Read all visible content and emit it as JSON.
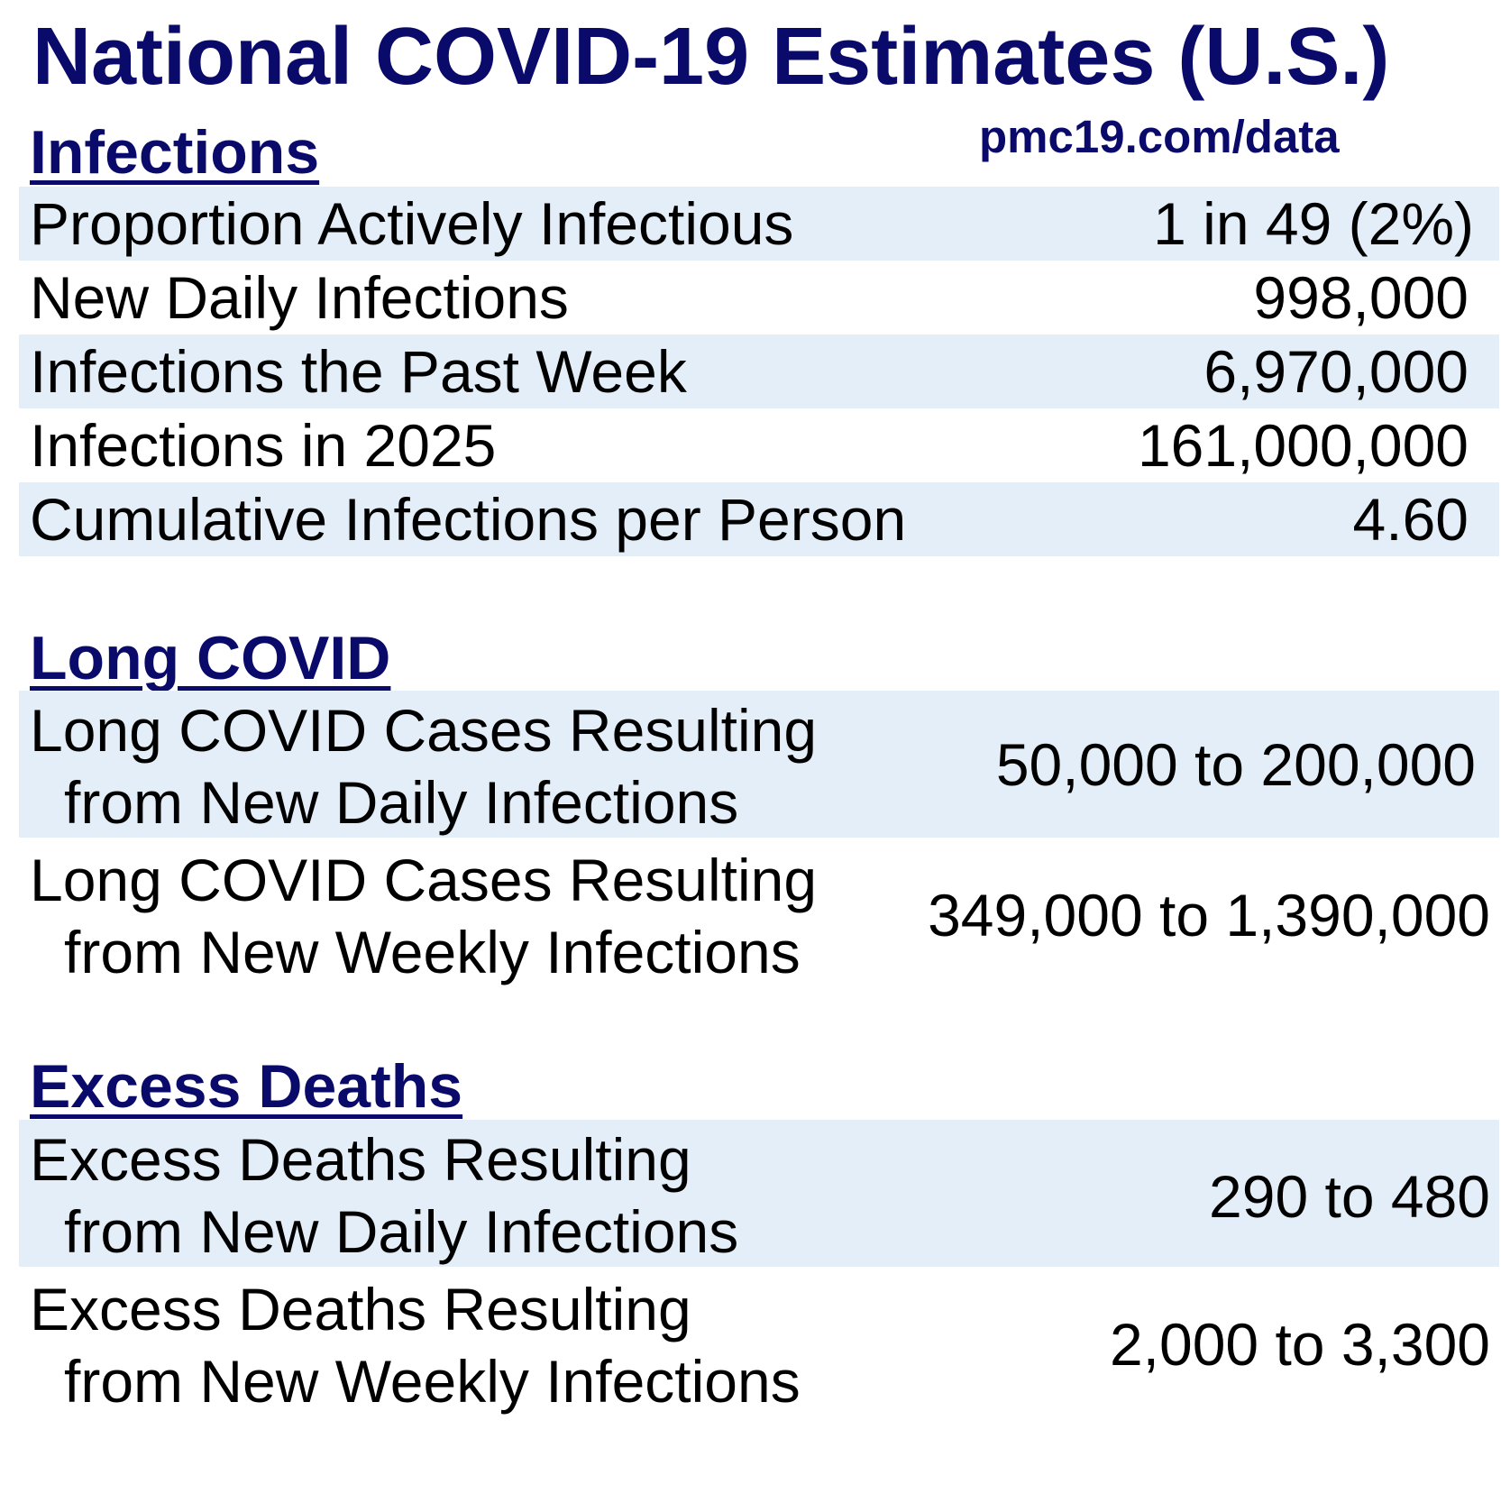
{
  "title": "National COVID-19 Estimates (U.S.)",
  "source": "pmc19.com/data",
  "sections": {
    "infections": {
      "heading": "Infections",
      "rows": [
        {
          "label": "Proportion Actively Infectious",
          "value": "1 in 49 (2%)"
        },
        {
          "label": "New Daily Infections",
          "value": "998,000"
        },
        {
          "label": "Infections the Past Week",
          "value": "6,970,000"
        },
        {
          "label": "Infections in 2025",
          "value": "161,000,000"
        },
        {
          "label": "Cumulative Infections per Person",
          "value": "4.60"
        }
      ]
    },
    "long_covid": {
      "heading": "Long COVID",
      "rows": [
        {
          "label_line1": "Long COVID Cases Resulting",
          "label_line2": "from New Daily Infections",
          "value": "50,000 to 200,000"
        },
        {
          "label_line1": "Long COVID Cases Resulting",
          "label_line2": "from New Weekly Infections",
          "value": "349,000 to 1,390,000"
        }
      ]
    },
    "excess_deaths": {
      "heading": "Excess Deaths",
      "rows": [
        {
          "label_line1": "Excess Deaths Resulting",
          "label_line2": "from New Daily Infections",
          "value": "290 to 480"
        },
        {
          "label_line1": "Excess Deaths Resulting",
          "label_line2": "from New Weekly Infections",
          "value": "2,000 to 3,300"
        }
      ]
    }
  },
  "colors": {
    "heading": "#0a0a6b",
    "row_shade": "#e3eef9",
    "text": "#000000"
  }
}
